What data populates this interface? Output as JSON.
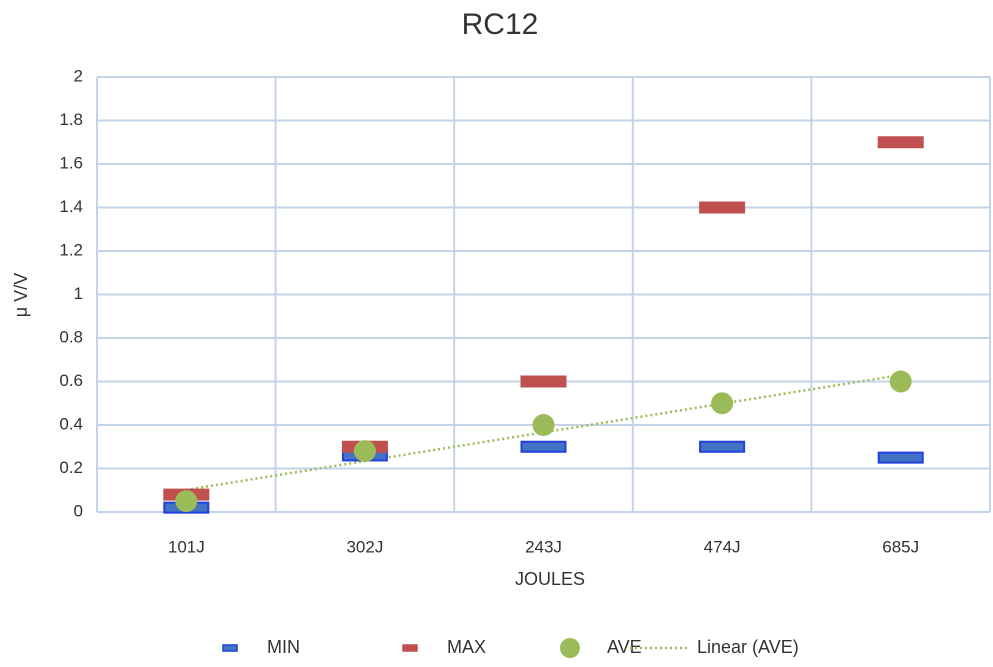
{
  "chart_data": {
    "type": "scatter",
    "title": "RC12",
    "x_label": "JOULES",
    "y_label": "μ V/V",
    "categories": [
      "101J",
      "302J",
      "243J",
      "474J",
      "685J"
    ],
    "series": [
      {
        "name": "MIN",
        "marker": "dash",
        "color": "#4472c4",
        "edge": "#1f3fe0",
        "values": [
          0.02,
          0.26,
          0.3,
          0.3,
          0.25
        ]
      },
      {
        "name": "MAX",
        "marker": "dash",
        "color": "#c0504d",
        "values": [
          0.08,
          0.3,
          0.6,
          1.4,
          1.7
        ]
      },
      {
        "name": "AVE",
        "marker": "circle",
        "color": "#9bbb59",
        "values": [
          0.05,
          0.28,
          0.4,
          0.5,
          0.6
        ]
      },
      {
        "name": "Linear (AVE)",
        "marker": "dotted-line",
        "color": "#9bbb59",
        "values": [
          0.102,
          0.234,
          0.366,
          0.498,
          0.63
        ]
      }
    ],
    "ylim": [
      0,
      2
    ],
    "yticks": [
      0,
      0.2,
      0.4,
      0.6,
      0.8,
      1,
      1.2,
      1.4,
      1.6,
      1.8,
      2
    ],
    "grid": true,
    "legend": "bottom"
  }
}
